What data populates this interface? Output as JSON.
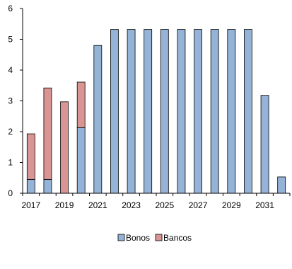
{
  "chart_data": {
    "type": "bar",
    "stacked": true,
    "x": [
      2017,
      2018,
      2019,
      2020,
      2021,
      2022,
      2023,
      2024,
      2025,
      2026,
      2027,
      2028,
      2029,
      2030,
      2031,
      2032
    ],
    "xtick_labels": [
      "2017",
      "2019",
      "2021",
      "2023",
      "2025",
      "2027",
      "2029",
      "2031"
    ],
    "series": [
      {
        "name": "Bonos",
        "color": "#95B3D7",
        "values": [
          0.45,
          0.45,
          0,
          2.13,
          4.8,
          5.32,
          5.32,
          5.32,
          5.32,
          5.32,
          5.32,
          5.32,
          5.32,
          5.32,
          3.18,
          0.53
        ]
      },
      {
        "name": "Bancos",
        "color": "#D99594",
        "values": [
          1.48,
          2.97,
          2.97,
          1.48,
          0,
          0,
          0,
          0,
          0,
          0,
          0,
          0,
          0,
          0,
          0,
          0
        ]
      }
    ],
    "ylim": [
      0,
      6
    ],
    "yticks": [
      0,
      1,
      2,
      3,
      4,
      5,
      6
    ],
    "grid": false,
    "legend_position": "bottom-center",
    "bar_outline_color": "#000000"
  }
}
